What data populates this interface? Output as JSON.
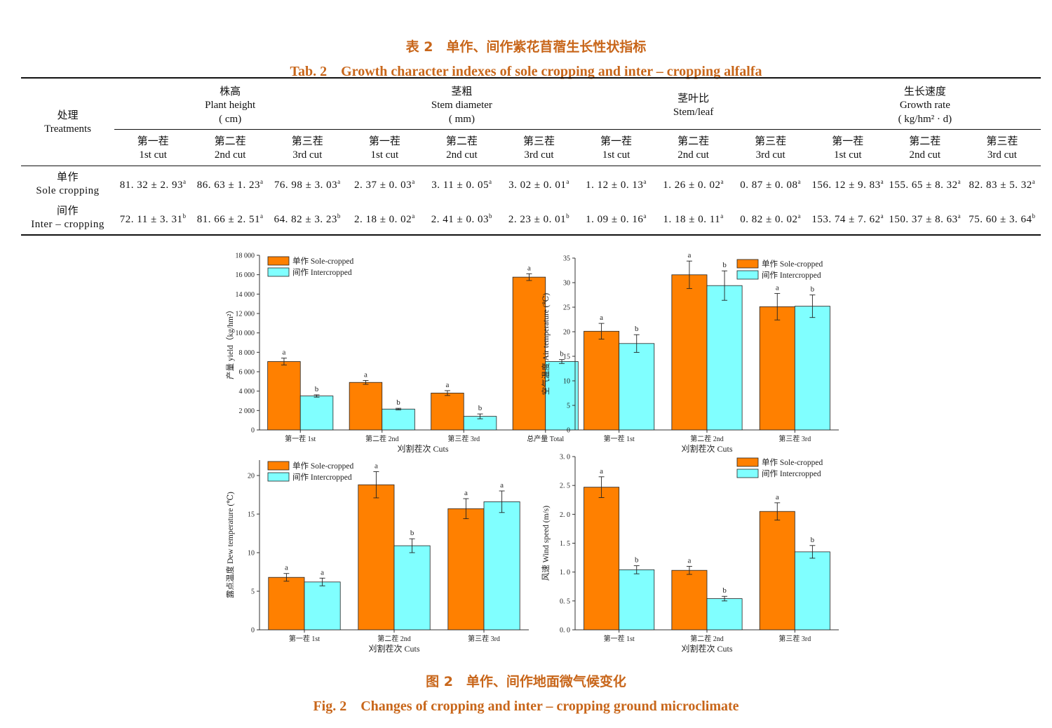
{
  "table_caption": {
    "cn": "表 2　单作、间作紫花苜蓿生长性状指标",
    "en": "Tab. 2　Growth character indexes of sole cropping and inter – cropping alfalfa"
  },
  "table": {
    "treatments_cn": "处理",
    "treatments_en": "Treatments",
    "groups": [
      {
        "cn": "株高",
        "en": "Plant height",
        "unit": "( cm)"
      },
      {
        "cn": "茎粗",
        "en": "Stem diameter",
        "unit": "( mm)"
      },
      {
        "cn": "茎叶比",
        "en": "Stem/leaf",
        "unit": ""
      },
      {
        "cn": "生长速度",
        "en": "Growth rate",
        "unit": "( kg/hm² · d)"
      }
    ],
    "cuts": [
      {
        "cn": "第一茬",
        "en": "1st cut"
      },
      {
        "cn": "第二茬",
        "en": "2nd cut"
      },
      {
        "cn": "第三茬",
        "en": "3rd cut"
      }
    ],
    "rows": [
      {
        "cn": "单作",
        "en": "Sole cropping",
        "cells": [
          {
            "v": "81. 32 ± 2. 93",
            "s": "a"
          },
          {
            "v": "86. 63 ± 1. 23",
            "s": "a"
          },
          {
            "v": "76. 98 ± 3. 03",
            "s": "a"
          },
          {
            "v": "2. 37 ± 0. 03",
            "s": "a"
          },
          {
            "v": "3. 11 ± 0. 05",
            "s": "a"
          },
          {
            "v": "3. 02 ± 0. 01",
            "s": "a"
          },
          {
            "v": "1. 12 ± 0. 13",
            "s": "a"
          },
          {
            "v": "1. 26 ± 0. 02",
            "s": "a"
          },
          {
            "v": "0. 87 ± 0. 08",
            "s": "a"
          },
          {
            "v": "156. 12 ± 9. 83",
            "s": "a"
          },
          {
            "v": "155. 65 ± 8. 32",
            "s": "a"
          },
          {
            "v": "82. 83 ± 5. 32",
            "s": "a"
          }
        ]
      },
      {
        "cn": "间作",
        "en": "Inter – cropping",
        "cells": [
          {
            "v": "72. 11 ± 3. 31",
            "s": "b"
          },
          {
            "v": "81. 66 ± 2. 51",
            "s": "a"
          },
          {
            "v": "64. 82 ± 3. 23",
            "s": "b"
          },
          {
            "v": "2. 18 ± 0. 02",
            "s": "a"
          },
          {
            "v": "2. 41 ± 0. 03",
            "s": "b"
          },
          {
            "v": "2. 23 ± 0. 01",
            "s": "b"
          },
          {
            "v": "1. 09 ± 0. 16",
            "s": "a"
          },
          {
            "v": "1. 18 ± 0. 11",
            "s": "a"
          },
          {
            "v": "0. 82 ± 0. 02",
            "s": "a"
          },
          {
            "v": "153. 74 ± 7. 62",
            "s": "a"
          },
          {
            "v": "150. 37 ± 8. 63",
            "s": "a"
          },
          {
            "v": "75. 60 ± 3. 64",
            "s": "b"
          }
        ]
      }
    ]
  },
  "figure_caption": {
    "cn": "图 2　单作、间作地面微气候变化",
    "en": "Fig. 2　Changes of cropping and inter – cropping ground microclimate"
  },
  "colors": {
    "sole": "#FF8000",
    "inter": "#80FFFF",
    "caption": "#C8661A"
  },
  "legend": {
    "sole": "单作 Sole-cropped",
    "inter": "间作 Intercropped"
  },
  "chart_data": [
    {
      "type": "bar",
      "categories": [
        "第一茬 1st",
        "第二茬 2nd",
        "第三茬 3rd",
        "总产量 Total"
      ],
      "xlabel": "刈割茬次 Cuts",
      "ylabel": "产量 yield（kg/hm²）",
      "ylim": [
        0,
        18000
      ],
      "yticks": [
        0,
        2000,
        4000,
        6000,
        8000,
        10000,
        12000,
        14000,
        16000,
        18000
      ],
      "ytick_labels": [
        "0",
        "2 000",
        "4 000",
        "6 000",
        "8 000",
        "10 000",
        "12 000",
        "14 000",
        "16 000",
        "18 000"
      ],
      "legend_position": "top-left",
      "series": [
        {
          "name": "单作 Sole-cropped",
          "values": [
            7050,
            4900,
            3800,
            15750
          ],
          "errors": [
            350,
            200,
            250,
            350
          ],
          "labels": [
            "a",
            "a",
            "a",
            "a"
          ]
        },
        {
          "name": "间作 Intercropped",
          "values": [
            3500,
            2150,
            1400,
            7050
          ],
          "errors": [
            120,
            80,
            250,
            200
          ],
          "labels": [
            "b",
            "b",
            "b",
            "b"
          ]
        }
      ]
    },
    {
      "type": "bar",
      "categories": [
        "第一茬 1st",
        "第二茬 2nd",
        "第三茬 3rd"
      ],
      "xlabel": "刈割茬次 Cuts",
      "ylabel": "空气温度 Air temperature (℃)",
      "ylim": [
        0,
        35
      ],
      "yticks": [
        0,
        5,
        10,
        15,
        20,
        25,
        30,
        35
      ],
      "ytick_labels": [
        "0",
        "5",
        "10",
        "15",
        "20",
        "25",
        "30",
        "35"
      ],
      "legend_position": "top-right",
      "series": [
        {
          "name": "单作 Sole-cropped",
          "values": [
            20.1,
            31.6,
            25.1
          ],
          "errors": [
            1.6,
            2.8,
            2.7
          ],
          "labels": [
            "a",
            "a",
            "a"
          ]
        },
        {
          "name": "间作 Intercropped",
          "values": [
            17.6,
            29.4,
            25.2
          ],
          "errors": [
            1.8,
            3.0,
            2.3
          ],
          "labels": [
            "b",
            "b",
            "b"
          ]
        }
      ]
    },
    {
      "type": "bar",
      "categories": [
        "第一茬 1st",
        "第二茬 2nd",
        "第三茬 3rd"
      ],
      "xlabel": "刈割茬次 Cuts",
      "ylabel": "露点温度 Dew temperature (℃)",
      "ylim": [
        0,
        22
      ],
      "yticks": [
        0,
        5,
        10,
        15,
        20
      ],
      "ytick_labels": [
        "0",
        "5",
        "10",
        "15",
        "20"
      ],
      "legend_position": "top-left",
      "series": [
        {
          "name": "单作 Sole-cropped",
          "values": [
            6.8,
            18.8,
            15.7
          ],
          "errors": [
            0.5,
            1.7,
            1.3
          ],
          "labels": [
            "a",
            "a",
            "a"
          ]
        },
        {
          "name": "间作 Intercropped",
          "values": [
            6.2,
            10.9,
            16.6
          ],
          "errors": [
            0.5,
            0.9,
            1.4
          ],
          "labels": [
            "a",
            "b",
            "a"
          ]
        }
      ]
    },
    {
      "type": "bar",
      "categories": [
        "第一茬 1st",
        "第二茬 2nd",
        "第三茬 3rd"
      ],
      "xlabel": "刈割茬次 Cuts",
      "ylabel": "风速 Wind speed (m/s)",
      "ylim": [
        0,
        3.0
      ],
      "yticks": [
        0,
        0.5,
        1.0,
        1.5,
        2.0,
        2.5,
        3.0
      ],
      "ytick_labels": [
        "0. 0",
        "0. 5",
        "1. 0",
        "1. 5",
        "2. 0",
        "2. 5",
        "3. 0"
      ],
      "legend_position": "top-right",
      "series": [
        {
          "name": "单作 Sole-cropped",
          "values": [
            2.47,
            1.03,
            2.05
          ],
          "errors": [
            0.18,
            0.07,
            0.15
          ],
          "labels": [
            "a",
            "a",
            "a"
          ]
        },
        {
          "name": "间作 Intercropped",
          "values": [
            1.04,
            0.54,
            1.35
          ],
          "errors": [
            0.07,
            0.04,
            0.11
          ],
          "labels": [
            "b",
            "b",
            "b"
          ]
        }
      ]
    }
  ]
}
